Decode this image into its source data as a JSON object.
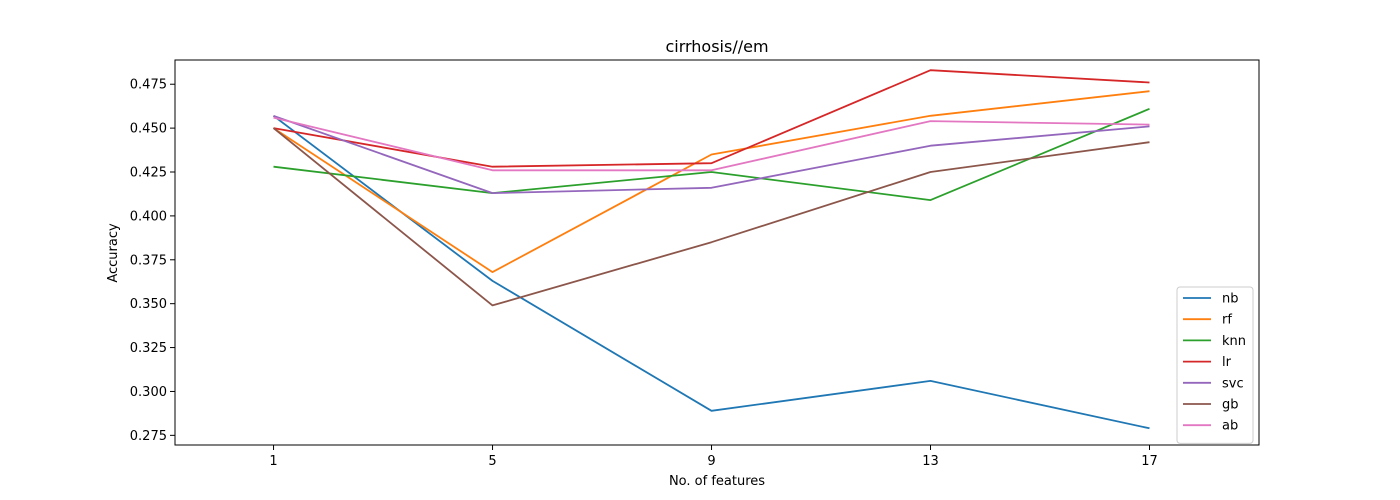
{
  "chart_data": {
    "type": "line",
    "title": "cirrhosis//em",
    "xlabel": "No. of features",
    "ylabel": "Accuracy",
    "x": [
      1,
      5,
      9,
      13,
      17
    ],
    "xlim": [
      -0.8,
      19
    ],
    "ylim": [
      0.2695,
      0.4888
    ],
    "yticks": [
      "0.275",
      "0.300",
      "0.325",
      "0.350",
      "0.375",
      "0.400",
      "0.425",
      "0.450",
      "0.475"
    ],
    "legend_position": "lower-right",
    "grid": false,
    "series": [
      {
        "name": "nb",
        "color": "#1f77b4",
        "values": [
          0.457,
          0.363,
          0.289,
          0.306,
          0.279
        ]
      },
      {
        "name": "rf",
        "color": "#ff7f0e",
        "values": [
          0.45,
          0.368,
          0.435,
          0.457,
          0.471
        ]
      },
      {
        "name": "knn",
        "color": "#2ca02c",
        "values": [
          0.428,
          0.413,
          0.425,
          0.409,
          0.461
        ]
      },
      {
        "name": "lr",
        "color": "#d62728",
        "values": [
          0.45,
          0.428,
          0.43,
          0.483,
          0.476
        ]
      },
      {
        "name": "svc",
        "color": "#9467bd",
        "values": [
          0.457,
          0.413,
          0.416,
          0.44,
          0.451
        ]
      },
      {
        "name": "gb",
        "color": "#8c564b",
        "values": [
          0.45,
          0.349,
          0.385,
          0.425,
          0.442
        ]
      },
      {
        "name": "ab",
        "color": "#e377c2",
        "values": [
          0.456,
          0.426,
          0.426,
          0.454,
          0.452
        ]
      }
    ]
  }
}
